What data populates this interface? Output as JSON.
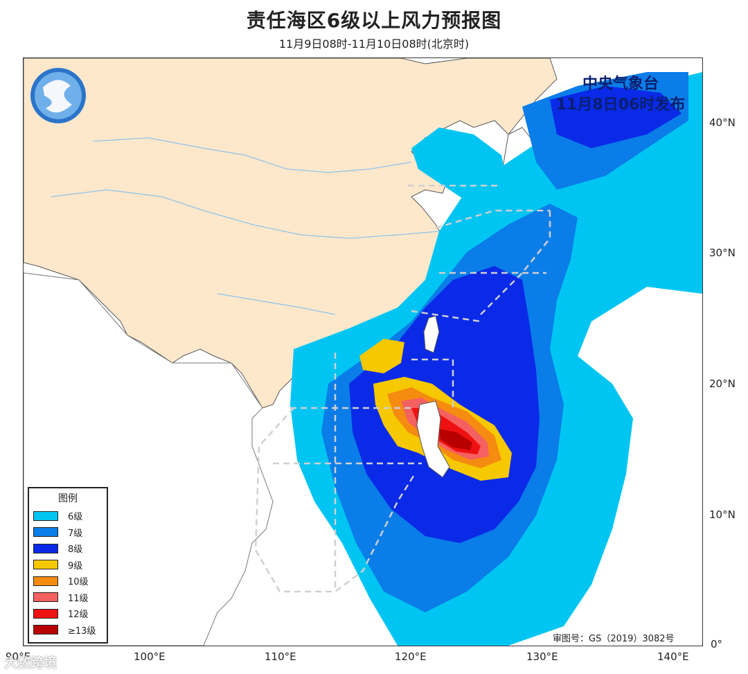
{
  "title": "责任海区6级以上风力预报图",
  "subtitle": "11月9日08时-11月10日08时(北京时)",
  "issuer": {
    "org": "中央气象台",
    "time": "11月8日06时发布"
  },
  "legend": {
    "title": "图例",
    "items": [
      {
        "label": "6级",
        "color": "#00c5f2"
      },
      {
        "label": "7级",
        "color": "#0a7de8"
      },
      {
        "label": "8级",
        "color": "#0a2ae8"
      },
      {
        "label": "9级",
        "color": "#f6c800"
      },
      {
        "label": "10级",
        "color": "#f58b10"
      },
      {
        "label": "11级",
        "color": "#f56060"
      },
      {
        "label": "12级",
        "color": "#ee1111"
      },
      {
        "label": "≥13级",
        "color": "#b80000"
      }
    ]
  },
  "axes": {
    "x_ticks": [
      "90°E",
      "100°E",
      "110°E",
      "120°E",
      "130°E",
      "140°E"
    ],
    "y_ticks": [
      "40°N",
      "30°N",
      "20°N",
      "10°N",
      "0°"
    ]
  },
  "approval_number": "审图号：GS（2019）3082号",
  "watermark": "大数跨境",
  "colors": {
    "land_china": "#fde8cc",
    "sea": "#ffffff",
    "border": "#555555",
    "river": "#8ec3ea",
    "zone_line": "#d0d0d0"
  }
}
